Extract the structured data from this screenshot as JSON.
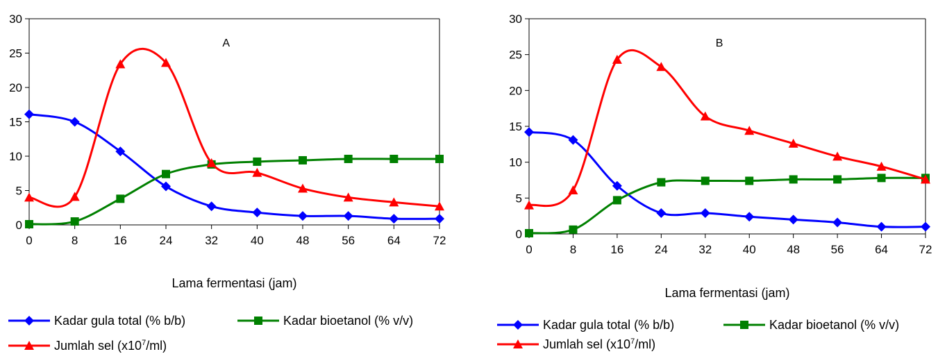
{
  "chart_data": [
    {
      "type": "line",
      "panel_label": "A",
      "xlabel": "Lama fermentasi (jam)",
      "ylabel": "",
      "ylim": [
        0,
        30
      ],
      "yticks": [
        "0",
        "5",
        "10",
        "15",
        "20",
        "25",
        "30"
      ],
      "xlim": [
        0,
        72
      ],
      "x": [
        0,
        8,
        16,
        24,
        32,
        40,
        48,
        56,
        64,
        72
      ],
      "xticks": [
        "0",
        "8",
        "16",
        "24",
        "32",
        "40",
        "48",
        "56",
        "64",
        "72"
      ],
      "grid": false,
      "legend_placement": "bottom",
      "series": [
        {
          "name": "Kadar gula total (% b/b)",
          "color": "#0000FF",
          "marker": "diamond",
          "values": [
            16.1,
            15.0,
            10.7,
            5.6,
            2.7,
            1.8,
            1.3,
            1.3,
            0.9,
            0.9
          ]
        },
        {
          "name": "Kadar bioetanol (% v/v)",
          "color": "#008000",
          "marker": "square",
          "values": [
            0.1,
            0.5,
            3.8,
            7.4,
            8.8,
            9.2,
            9.4,
            9.6,
            9.6,
            9.6
          ]
        },
        {
          "name_main": "Jumlah sel (x10",
          "name_sup": "7",
          "name_tail": "/ml)",
          "color": "#FF0000",
          "marker": "triangle",
          "values": [
            4.0,
            4.1,
            23.4,
            23.6,
            9.0,
            7.6,
            5.3,
            4.0,
            3.3,
            2.7
          ]
        }
      ]
    },
    {
      "type": "line",
      "panel_label": "B",
      "xlabel": "Lama fermentasi (jam)",
      "ylabel": "",
      "ylim": [
        0,
        30
      ],
      "yticks": [
        "0",
        "5",
        "10",
        "15",
        "20",
        "25",
        "30"
      ],
      "xlim": [
        0,
        72
      ],
      "x": [
        0,
        8,
        16,
        24,
        32,
        40,
        48,
        56,
        64,
        72
      ],
      "xticks": [
        "0",
        "8",
        "16",
        "24",
        "32",
        "40",
        "48",
        "56",
        "64",
        "72"
      ],
      "grid": false,
      "legend_placement": "bottom",
      "series": [
        {
          "name": "Kadar gula total (% b/b)",
          "color": "#0000FF",
          "marker": "diamond",
          "values": [
            14.2,
            13.1,
            6.7,
            2.9,
            2.9,
            2.4,
            2.0,
            1.6,
            1.0,
            1.0
          ]
        },
        {
          "name": "Kadar bioetanol (% v/v)",
          "color": "#008000",
          "marker": "square",
          "values": [
            0.1,
            0.6,
            4.7,
            7.2,
            7.4,
            7.4,
            7.6,
            7.6,
            7.8,
            7.8
          ]
        },
        {
          "name_main": "Jumlah sel (x10",
          "name_sup": "7",
          "name_tail": "/ml)",
          "color": "#FF0000",
          "marker": "triangle",
          "values": [
            4.0,
            6.1,
            24.3,
            23.3,
            16.4,
            14.4,
            12.6,
            10.8,
            9.4,
            7.6
          ]
        }
      ]
    }
  ]
}
